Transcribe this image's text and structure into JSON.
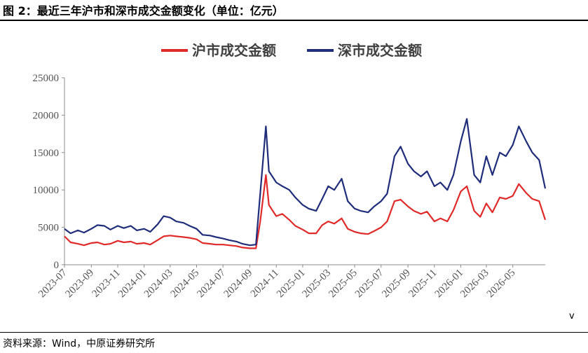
{
  "figure": {
    "title": "图 2：最近三年沪市和深市成交金额变化（单位：亿元）",
    "source": "资料来源：Wind，中原证券研究所",
    "corner_mark": "v"
  },
  "colors": {
    "sh": "#e02a2a",
    "sz": "#1f2d7a",
    "axis": "#8c8c8c"
  },
  "chart_data": {
    "type": "line",
    "title": "",
    "xlabel": "",
    "ylabel": "",
    "ylim": [
      0,
      25000
    ],
    "yticks": [
      0,
      5000,
      10000,
      15000,
      20000,
      25000
    ],
    "grid": false,
    "legend_position": "top-center",
    "x_range": [
      "2023-07-01",
      "2026-07-15"
    ],
    "x_tick_labels": [
      "2023-07",
      "2023-09",
      "2023-11",
      "2024-01",
      "2024-03",
      "2024-05",
      "2024-07",
      "2024-09",
      "2024-11",
      "2025-01",
      "2025-03",
      "2025-05",
      "2025-07",
      "2025-09",
      "2025-11",
      "2026-01",
      "2026-03",
      "2026-05"
    ],
    "x": [
      "2023-07-01",
      "2023-07-15",
      "2023-08-01",
      "2023-08-15",
      "2023-09-01",
      "2023-09-15",
      "2023-10-01",
      "2023-10-15",
      "2023-11-01",
      "2023-11-15",
      "2023-12-01",
      "2023-12-15",
      "2024-01-01",
      "2024-01-15",
      "2024-02-01",
      "2024-02-15",
      "2024-03-01",
      "2024-03-15",
      "2024-04-01",
      "2024-04-15",
      "2024-05-01",
      "2024-05-15",
      "2024-06-01",
      "2024-06-15",
      "2024-07-01",
      "2024-07-15",
      "2024-08-01",
      "2024-08-15",
      "2024-09-01",
      "2024-09-15",
      "2024-09-25",
      "2024-10-08",
      "2024-10-15",
      "2024-11-01",
      "2024-11-15",
      "2024-12-01",
      "2024-12-15",
      "2025-01-01",
      "2025-01-15",
      "2025-02-01",
      "2025-02-15",
      "2025-03-01",
      "2025-03-15",
      "2025-04-01",
      "2025-04-15",
      "2025-05-01",
      "2025-05-15",
      "2025-06-01",
      "2025-06-15",
      "2025-07-01",
      "2025-07-15",
      "2025-08-01",
      "2025-08-15",
      "2025-09-01",
      "2025-09-15",
      "2025-10-01",
      "2025-10-15",
      "2025-11-01",
      "2025-11-15",
      "2025-12-01",
      "2025-12-15",
      "2026-01-01",
      "2026-01-15",
      "2026-02-01",
      "2026-02-15",
      "2026-03-01",
      "2026-03-15",
      "2026-04-01",
      "2026-04-15",
      "2026-05-01",
      "2026-05-15",
      "2026-06-01",
      "2026-06-15",
      "2026-07-01",
      "2026-07-15"
    ],
    "series": [
      {
        "name": "沪市成交金额",
        "color": "#e02a2a",
        "values": [
          3800,
          3000,
          2800,
          2600,
          2900,
          3000,
          2700,
          2800,
          3200,
          3000,
          3100,
          2800,
          2900,
          2700,
          3300,
          3800,
          3900,
          3800,
          3700,
          3600,
          3400,
          2900,
          2800,
          2700,
          2700,
          2600,
          2500,
          2300,
          2200,
          2200,
          5800,
          12000,
          8000,
          6500,
          6800,
          6000,
          5200,
          4700,
          4200,
          4200,
          5300,
          5800,
          5500,
          6200,
          4800,
          4400,
          4200,
          4100,
          4500,
          5000,
          5800,
          8500,
          8700,
          7800,
          7200,
          6800,
          7100,
          5800,
          6200,
          5800,
          7300,
          9800,
          10500,
          7200,
          6400,
          8200,
          7000,
          9000,
          8800,
          9200,
          10800,
          9600,
          8800,
          8500,
          6000
        ]
      },
      {
        "name": "深市成交金额",
        "color": "#1f2d7a",
        "values": [
          4800,
          4200,
          4600,
          4300,
          4800,
          5300,
          5200,
          4700,
          5200,
          4900,
          5200,
          4600,
          4800,
          4400,
          5400,
          6500,
          6300,
          5800,
          5600,
          5200,
          4800,
          4000,
          3900,
          3700,
          3500,
          3300,
          3100,
          2800,
          2600,
          2700,
          9500,
          18500,
          12500,
          11000,
          10500,
          10000,
          9000,
          8000,
          7500,
          7200,
          8800,
          10500,
          10000,
          11500,
          8500,
          7500,
          7200,
          7000,
          7800,
          8500,
          9500,
          14500,
          15800,
          13500,
          12500,
          11800,
          12500,
          10500,
          11000,
          10000,
          12000,
          16500,
          19500,
          12000,
          11000,
          14500,
          12000,
          15000,
          14500,
          16000,
          18500,
          16500,
          15000,
          14000,
          10200
        ]
      }
    ]
  }
}
